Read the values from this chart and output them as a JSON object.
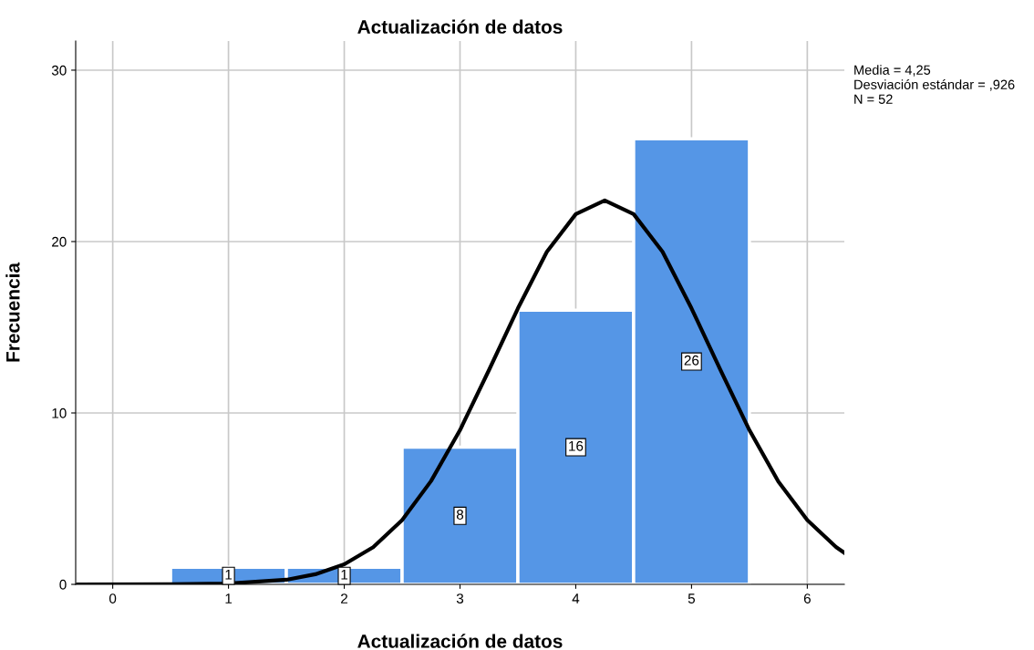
{
  "chart_data": {
    "type": "histogram",
    "title": "Actualización de datos",
    "xlabel": "Actualización de datos",
    "ylabel": "Frecuencia",
    "bins": [
      0.5,
      1.5,
      2.5,
      3.5,
      4.5,
      5.5
    ],
    "series": [
      {
        "color": "#5596e6",
        "values": [
          1,
          1,
          8,
          16,
          26
        ],
        "value_labels": [
          "1",
          "1",
          "8",
          "16",
          "26"
        ]
      },
      {
        "type": "line",
        "color": "#000000",
        "x": [
          -0.3,
          0.5,
          1.0,
          1.5,
          1.75,
          2.0,
          2.25,
          2.5,
          2.75,
          3.0,
          3.25,
          3.5,
          3.75,
          4.0,
          4.25,
          4.5,
          4.75,
          5.0,
          5.25,
          5.5,
          5.75,
          6.0,
          6.25,
          6.32
        ],
        "values": [
          0,
          0.01,
          0.05,
          0.27,
          0.59,
          1.17,
          2.17,
          3.75,
          6.03,
          9.0,
          12.5,
          16.1,
          19.4,
          21.6,
          22.4,
          21.6,
          19.4,
          16.1,
          12.5,
          9.0,
          6.0,
          3.75,
          2.17,
          1.84
        ]
      }
    ],
    "xlim": [
      -0.32,
      6.32
    ],
    "xticks": [
      0,
      1,
      2,
      3,
      4,
      5,
      6
    ],
    "ylim": [
      0,
      31.7
    ],
    "yticks": [
      0,
      10,
      20,
      30
    ],
    "grid": true,
    "annotations": [
      "Media = 4,25",
      "Desviación estándar = ,926",
      "N = 52"
    ]
  }
}
